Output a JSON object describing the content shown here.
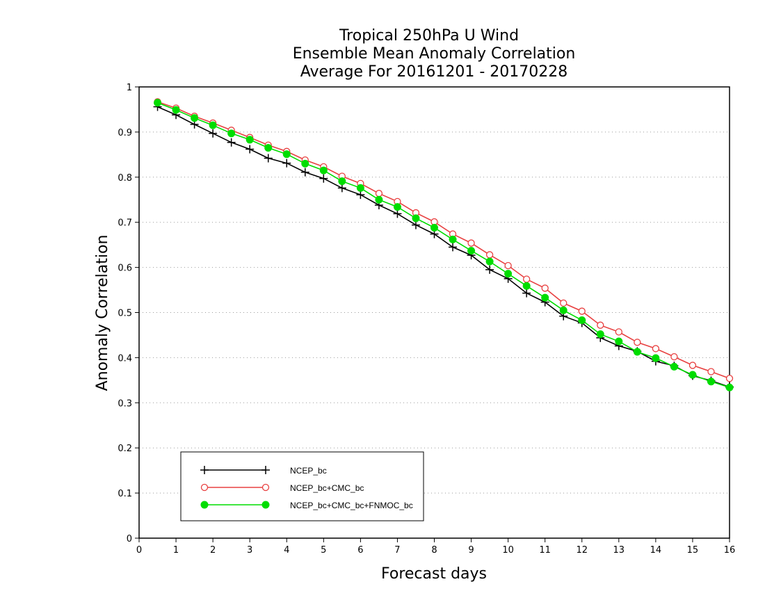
{
  "chart_data": {
    "type": "line",
    "title": [
      "Tropical 250hPa U Wind",
      "Ensemble Mean Anomaly Correlation",
      "Average For 20161201 - 20170228"
    ],
    "xlabel": "Forecast days",
    "ylabel": "Anomaly Correlation",
    "xlim": [
      0,
      16
    ],
    "ylim": [
      0,
      1
    ],
    "xticks": [
      "0",
      "1",
      "2",
      "3",
      "4",
      "5",
      "6",
      "7",
      "8",
      "9",
      "10",
      "11",
      "12",
      "13",
      "14",
      "15",
      "16"
    ],
    "yticks": [
      "0",
      "0.1",
      "0.2",
      "0.3",
      "0.4",
      "0.5",
      "0.6",
      "0.7",
      "0.8",
      "0.9",
      "1"
    ],
    "grid": "horizontal dotted",
    "legend": "lower-left",
    "x": [
      0.5,
      1,
      1.5,
      2,
      2.5,
      3,
      3.5,
      4,
      4.5,
      5,
      5.5,
      6,
      6.5,
      7,
      7.5,
      8,
      8.5,
      9,
      9.5,
      10,
      10.5,
      11,
      11.5,
      12,
      12.5,
      13,
      13.5,
      14,
      14.5,
      15,
      15.5,
      16
    ],
    "series": [
      {
        "name": "NCEP_bc",
        "color": "#000000",
        "marker": "plus",
        "values": [
          0.956,
          0.938,
          0.917,
          0.897,
          0.877,
          0.862,
          0.842,
          0.831,
          0.811,
          0.797,
          0.776,
          0.761,
          0.738,
          0.719,
          0.694,
          0.674,
          0.645,
          0.627,
          0.595,
          0.575,
          0.543,
          0.523,
          0.492,
          0.477,
          0.444,
          0.426,
          0.414,
          0.392,
          0.382,
          0.36,
          0.349,
          0.335
        ]
      },
      {
        "name": "NCEP_bc+CMC_bc",
        "color": "#e84040",
        "marker": "open-circle",
        "values": [
          0.967,
          0.953,
          0.935,
          0.92,
          0.904,
          0.888,
          0.871,
          0.857,
          0.838,
          0.823,
          0.802,
          0.786,
          0.764,
          0.746,
          0.721,
          0.701,
          0.674,
          0.654,
          0.628,
          0.604,
          0.574,
          0.554,
          0.521,
          0.503,
          0.472,
          0.457,
          0.434,
          0.42,
          0.402,
          0.383,
          0.369,
          0.354
        ]
      },
      {
        "name": "NCEP_bc+CMC_bc+FNMOC_bc",
        "color": "#00dd00",
        "marker": "filled-circle",
        "values": [
          0.965,
          0.949,
          0.931,
          0.915,
          0.897,
          0.883,
          0.865,
          0.851,
          0.83,
          0.815,
          0.791,
          0.776,
          0.75,
          0.734,
          0.709,
          0.688,
          0.662,
          0.637,
          0.613,
          0.586,
          0.559,
          0.533,
          0.505,
          0.483,
          0.452,
          0.436,
          0.413,
          0.399,
          0.38,
          0.362,
          0.347,
          0.334
        ]
      }
    ]
  }
}
